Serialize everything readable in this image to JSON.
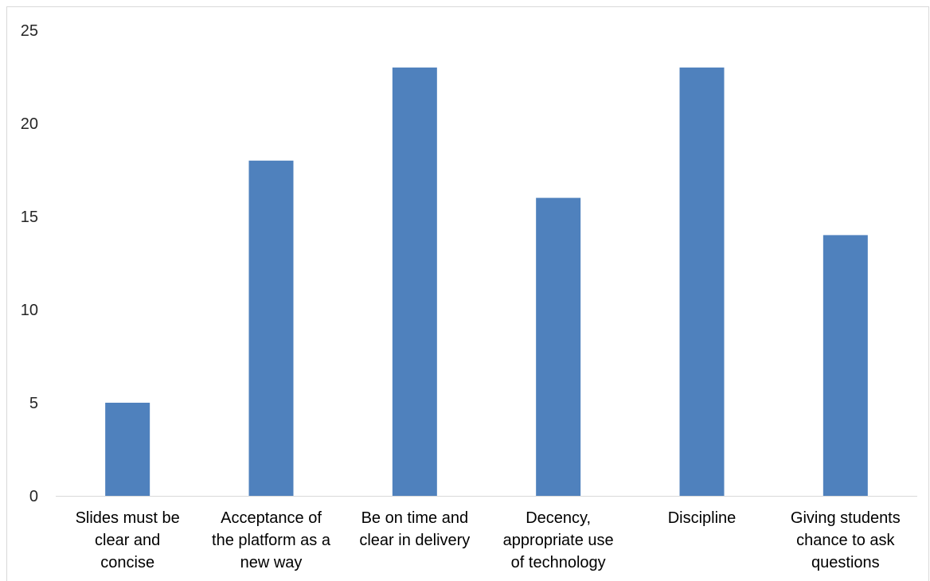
{
  "chart_data": {
    "type": "bar",
    "title": "",
    "xlabel": "",
    "ylabel": "",
    "categories": [
      [
        "Slides must be",
        "clear and",
        "concise"
      ],
      [
        "Acceptance of",
        "the platform as a",
        "new way"
      ],
      [
        "Be on time and",
        "clear in delivery"
      ],
      [
        "Decency,",
        "appropriate use",
        "of technology"
      ],
      [
        "Discipline"
      ],
      [
        "Giving students",
        "chance to ask",
        "questions"
      ]
    ],
    "values": [
      5,
      18,
      23,
      16,
      23,
      14
    ],
    "ylim": [
      0,
      25
    ],
    "yticks": [
      0,
      5,
      10,
      15,
      20,
      25
    ],
    "grid": false,
    "legend": "none",
    "bar_color": "#4f81bd"
  }
}
